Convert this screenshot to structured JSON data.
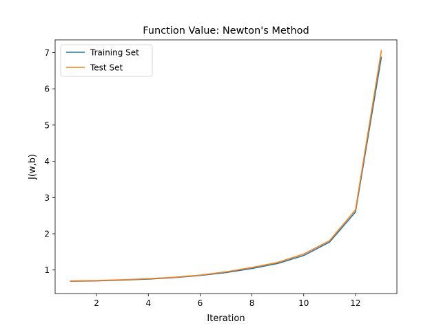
{
  "chart_data": {
    "type": "line",
    "title": "Function Value: Newton's Method",
    "xlabel": "Iteration",
    "ylabel": "J(w,b)",
    "xlim": [
      0.4,
      13.6
    ],
    "ylim": [
      0.35,
      7.35
    ],
    "xticks": [
      2,
      4,
      6,
      8,
      10,
      12
    ],
    "yticks": [
      1,
      2,
      3,
      4,
      5,
      6,
      7
    ],
    "grid": false,
    "legend_position": "upper-left",
    "x": [
      1,
      2,
      3,
      4,
      5,
      6,
      7,
      8,
      9,
      10,
      11,
      12,
      13
    ],
    "series": [
      {
        "name": "Training Set",
        "color": "#1f77b4",
        "values": [
          0.69,
          0.7,
          0.72,
          0.75,
          0.79,
          0.85,
          0.93,
          1.04,
          1.18,
          1.4,
          1.77,
          2.6,
          6.87
        ]
      },
      {
        "name": "Test Set",
        "color": "#ff7f0e",
        "values": [
          0.7,
          0.71,
          0.73,
          0.76,
          0.8,
          0.86,
          0.95,
          1.07,
          1.21,
          1.44,
          1.81,
          2.66,
          7.05
        ]
      }
    ]
  }
}
